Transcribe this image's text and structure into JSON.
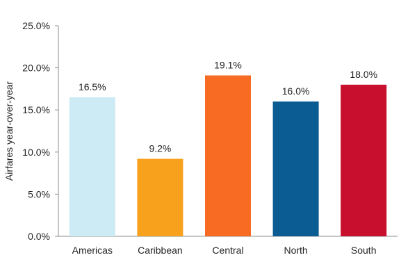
{
  "chart_data": {
    "type": "bar",
    "title": "",
    "xlabel": "",
    "ylabel": "Airfares year-over-year",
    "ylim": [
      0,
      25
    ],
    "yticks": [
      0,
      5,
      10,
      15,
      20,
      25
    ],
    "ytick_labels": [
      "0.0%",
      "5.0%",
      "10.0%",
      "15.0%",
      "20.0%",
      "25.0%"
    ],
    "grid": false,
    "legend": "none",
    "categories": [
      "Americas",
      "Caribbean",
      "Central",
      "North",
      "South"
    ],
    "values": [
      16.5,
      9.2,
      19.1,
      16.0,
      18.0
    ],
    "value_labels": [
      "16.5%",
      "9.2%",
      "19.1%",
      "16.0%",
      "18.0%"
    ],
    "colors": [
      "#cdebf5",
      "#f7a11d",
      "#f76b22",
      "#0a5c93",
      "#c8102e"
    ]
  }
}
